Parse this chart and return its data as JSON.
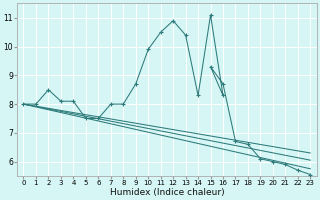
{
  "xlabel": "Humidex (Indice chaleur)",
  "bg_color": "#d6f5f5",
  "grid_color": "#ffffff",
  "line_color": "#2d7a7a",
  "xlim": [
    -0.5,
    23.5
  ],
  "ylim": [
    5.5,
    11.5
  ],
  "xticks": [
    0,
    1,
    2,
    3,
    4,
    5,
    6,
    7,
    8,
    9,
    10,
    11,
    12,
    13,
    14,
    15,
    16,
    17,
    18,
    19,
    20,
    21,
    22,
    23
  ],
  "yticks": [
    6,
    7,
    8,
    9,
    10,
    11
  ],
  "curves": [
    [
      [
        0,
        8.0
      ],
      [
        1,
        8.0
      ],
      [
        2,
        8.5
      ],
      [
        3,
        8.1
      ],
      [
        4,
        8.1
      ],
      [
        5,
        7.5
      ],
      [
        6,
        7.5
      ],
      [
        7,
        8.0
      ],
      [
        8,
        8.0
      ],
      [
        9,
        8.7
      ],
      [
        10,
        9.9
      ],
      [
        11,
        10.5
      ],
      [
        12,
        10.9
      ],
      [
        13,
        10.4
      ],
      [
        14,
        8.3
      ],
      [
        15,
        11.1
      ],
      [
        16,
        8.3
      ],
      [
        15,
        9.3
      ],
      [
        16,
        8.7
      ],
      [
        17,
        6.7
      ],
      [
        18,
        6.6
      ],
      [
        19,
        6.1
      ],
      [
        20,
        6.0
      ],
      [
        21,
        5.9
      ],
      [
        22,
        5.7
      ],
      [
        23,
        5.55
      ]
    ],
    [
      [
        0,
        8.0
      ],
      [
        23,
        6.3
      ]
    ],
    [
      [
        0,
        8.0
      ],
      [
        23,
        6.05
      ]
    ],
    [
      [
        0,
        8.0
      ],
      [
        23,
        5.75
      ]
    ]
  ],
  "markers": [
    [
      0,
      8.0
    ],
    [
      1,
      8.0
    ],
    [
      2,
      8.5
    ],
    [
      3,
      8.1
    ],
    [
      4,
      8.1
    ],
    [
      5,
      7.5
    ],
    [
      6,
      7.5
    ],
    [
      7,
      8.0
    ],
    [
      8,
      8.0
    ],
    [
      9,
      8.7
    ],
    [
      10,
      9.9
    ],
    [
      11,
      10.5
    ],
    [
      12,
      10.9
    ],
    [
      13,
      10.4
    ],
    [
      14,
      8.3
    ],
    [
      15,
      11.1
    ],
    [
      16,
      8.3
    ],
    [
      15,
      9.3
    ],
    [
      16,
      8.7
    ],
    [
      17,
      6.7
    ],
    [
      18,
      6.6
    ],
    [
      19,
      6.1
    ],
    [
      20,
      6.0
    ],
    [
      21,
      5.9
    ],
    [
      22,
      5.7
    ],
    [
      23,
      5.55
    ]
  ],
  "xlabel_fontsize": 6.5,
  "tick_fontsize": 5.5
}
